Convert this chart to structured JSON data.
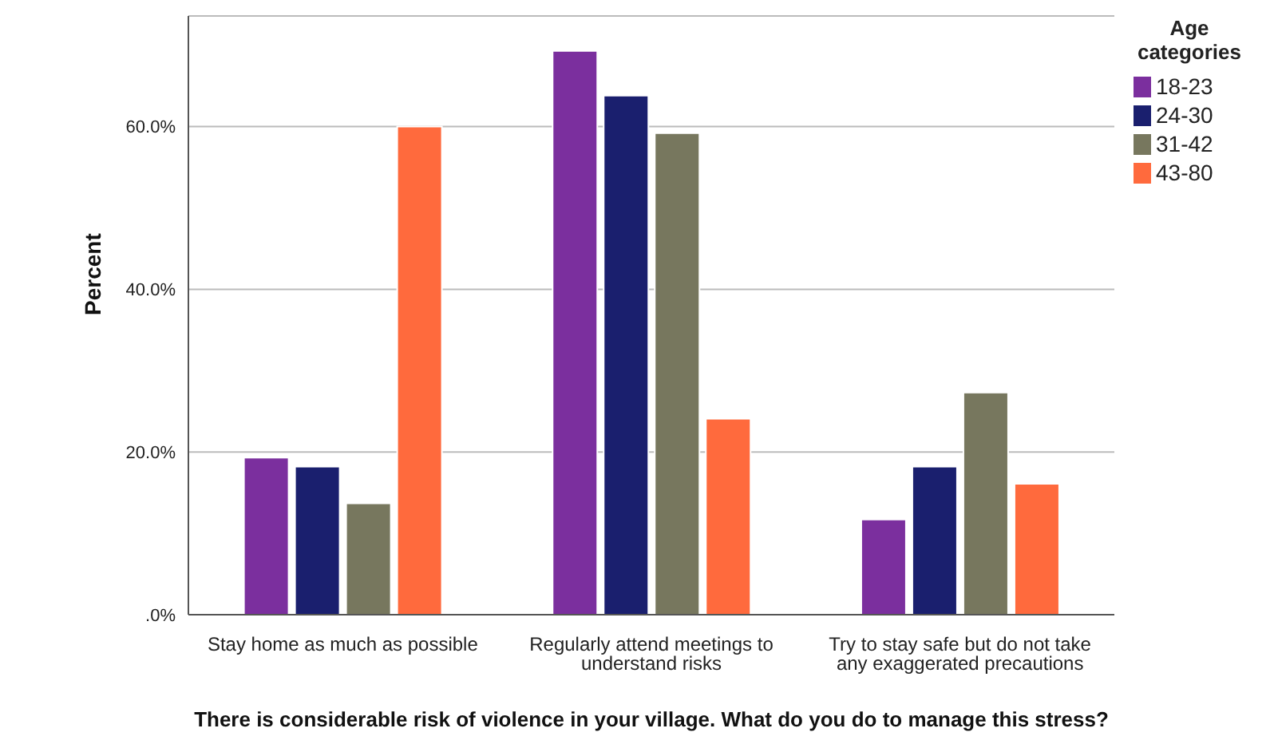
{
  "chart_data": {
    "type": "bar",
    "xlabel": "There is considerable risk of violence in your village. What do you do to manage this stress?",
    "ylabel": "Percent",
    "legend_title": "Age categories",
    "categories": [
      "Stay home as much as possible",
      "Regularly attend meetings to understand risks",
      "Try to stay safe but do not take any exaggerated precautions"
    ],
    "series": [
      {
        "name": "18-23",
        "color": "#7b2f9e",
        "values": [
          19.3,
          69.3,
          11.7
        ]
      },
      {
        "name": "24-30",
        "color": "#1a1f6e",
        "values": [
          18.2,
          63.8,
          18.2
        ]
      },
      {
        "name": "31-42",
        "color": "#77775e",
        "values": [
          13.7,
          59.2,
          27.3
        ]
      },
      {
        "name": "43-80",
        "color": "#ff6a3d",
        "values": [
          60.0,
          24.1,
          16.1
        ]
      }
    ],
    "ylim": [
      0,
      73.6
    ],
    "yticks": [
      {
        "value": 0,
        "label": ".0%"
      },
      {
        "value": 20,
        "label": "20.0%"
      },
      {
        "value": 40,
        "label": "40.0%"
      },
      {
        "value": 60,
        "label": "60.0%"
      }
    ],
    "grid": "y",
    "legend": "top right"
  }
}
